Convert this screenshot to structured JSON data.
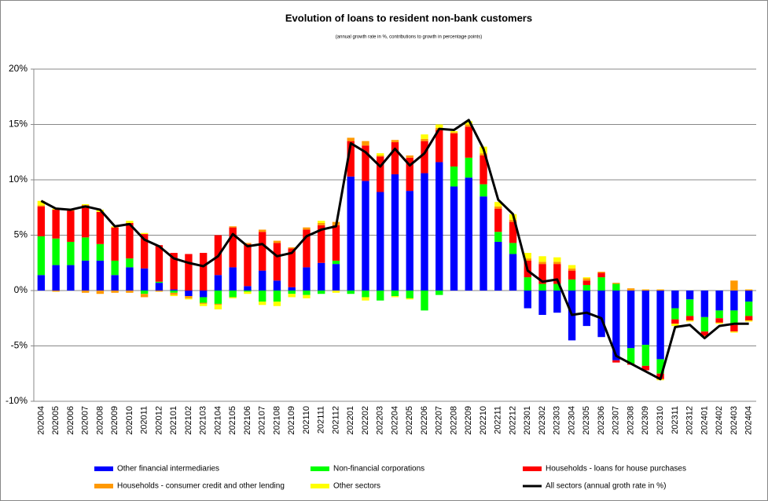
{
  "chart_data": {
    "type": "bar",
    "stacked": true,
    "title": "Evolution of loans to resident non-bank customers",
    "subtitle": "(annual growth rate in %, contributions to growth in percentage points)",
    "categories": [
      "202004",
      "202005",
      "202006",
      "202007",
      "202008",
      "202009",
      "202010",
      "202011",
      "202012",
      "202101",
      "202102",
      "202103",
      "202104",
      "202105",
      "202106",
      "202107",
      "202108",
      "202109",
      "202110",
      "202111",
      "202112",
      "202201",
      "202202",
      "202203",
      "202204",
      "202205",
      "202206",
      "202207",
      "202208",
      "202209",
      "202210",
      "202211",
      "202212",
      "202301",
      "202302",
      "202303",
      "202304",
      "202305",
      "202306",
      "202307",
      "202308",
      "202309",
      "202310",
      "202311",
      "202312",
      "202401",
      "202402",
      "202403",
      "202404"
    ],
    "ylim": [
      -10,
      20
    ],
    "yticks": [
      {
        "value": -10,
        "label": "-10%"
      },
      {
        "value": -5,
        "label": "-5%"
      },
      {
        "value": 0,
        "label": "0%"
      },
      {
        "value": 5,
        "label": "5%"
      },
      {
        "value": 10,
        "label": "10%"
      },
      {
        "value": 15,
        "label": "15%"
      },
      {
        "value": 20,
        "label": "20%"
      }
    ],
    "grid": true,
    "series": [
      {
        "name": "Other financial intermediaries",
        "type": "bar",
        "color": "#0000ff",
        "values": [
          1.4,
          2.3,
          2.3,
          2.7,
          2.7,
          1.4,
          2.1,
          2.0,
          0.7,
          0.1,
          -0.5,
          -0.6,
          1.4,
          2.1,
          0.4,
          1.8,
          0.9,
          0.3,
          2.1,
          2.5,
          2.4,
          10.3,
          9.9,
          8.9,
          10.5,
          9.0,
          10.6,
          11.6,
          9.4,
          10.2,
          8.5,
          4.4,
          3.3,
          -1.6,
          -2.2,
          -2.0,
          -4.5,
          -3.2,
          -4.2,
          -6.3,
          -5.2,
          -4.9,
          -6.2,
          -1.6,
          -0.8,
          -2.4,
          -1.8,
          -1.8,
          -1.0
        ]
      },
      {
        "name": "Non-financial corporations",
        "type": "bar",
        "color": "#00ff00",
        "values": [
          3.5,
          2.4,
          2.1,
          2.1,
          1.5,
          1.3,
          0.8,
          -0.3,
          0.1,
          -0.2,
          0,
          -0.5,
          -1.2,
          -0.6,
          -0.1,
          -1.0,
          -1.0,
          -0.3,
          -0.4,
          -0.3,
          0.3,
          -0.3,
          -0.6,
          -0.9,
          -0.5,
          -0.7,
          -1.8,
          -0.4,
          1.8,
          1.8,
          1.1,
          0.9,
          1.0,
          1.2,
          0.6,
          0.6,
          1.0,
          0.5,
          1.2,
          0.6,
          -1.4,
          -1.9,
          -1.3,
          -1.0,
          -1.5,
          -1.3,
          -0.7,
          -1.3,
          -1.3
        ]
      },
      {
        "name": "Households - loans for house purchases",
        "type": "bar",
        "color": "#ff0000",
        "values": [
          2.7,
          2.6,
          2.8,
          2.9,
          2.9,
          3.0,
          3.2,
          3.1,
          3.3,
          3.3,
          3.3,
          3.4,
          3.6,
          3.6,
          3.8,
          3.5,
          3.4,
          3.5,
          3.4,
          3.4,
          3.2,
          3.2,
          3.2,
          3.2,
          2.9,
          3.0,
          2.9,
          2.9,
          3.0,
          2.8,
          2.6,
          2.1,
          1.9,
          1.5,
          1.8,
          1.8,
          0.8,
          0.4,
          0.4,
          -0.2,
          -0.1,
          -0.4,
          -0.5,
          -0.4,
          -0.4,
          -0.4,
          -0.4,
          -0.6,
          -0.4
        ]
      },
      {
        "name": "Households - consumer credit and other lending",
        "type": "bar",
        "color": "#ff9900",
        "values": [
          0.1,
          -0.1,
          0.1,
          -0.2,
          -0.3,
          -0.2,
          -0.2,
          -0.3,
          -0.1,
          -0.2,
          -0.2,
          -0.1,
          -0.1,
          0.1,
          0.1,
          0.2,
          0.2,
          0.1,
          0.2,
          0.2,
          0.3,
          0.3,
          0.4,
          0.1,
          0.2,
          0.2,
          0.2,
          0.2,
          0.1,
          0.2,
          0.2,
          0.2,
          0.2,
          0.2,
          0.2,
          0.2,
          0.2,
          0.2,
          0.1,
          0.1,
          0.2,
          0.1,
          0.1,
          0,
          0,
          0,
          0,
          0.9,
          0.1
        ]
      },
      {
        "name": "Other sectors",
        "type": "bar",
        "color": "#ffff00",
        "values": [
          0.4,
          0.1,
          0.1,
          0.1,
          0.2,
          0.1,
          0.2,
          0.1,
          0,
          -0.1,
          -0.1,
          -0.2,
          -0.4,
          -0.1,
          -0.2,
          -0.3,
          -0.4,
          -0.3,
          -0.3,
          0.2,
          -0.2,
          0,
          -0.3,
          0.2,
          -0.1,
          -0.1,
          0.4,
          0.3,
          0.1,
          0.3,
          0.6,
          0.4,
          0.5,
          0.5,
          0.5,
          0.4,
          0.3,
          0.1,
          0,
          0,
          0,
          0,
          -0.1,
          -0.2,
          -0.1,
          -0.1,
          -0.1,
          -0.1,
          -0.1
        ]
      },
      {
        "name": "All sectors (annual groth rate in %)",
        "type": "line",
        "color": "#000000",
        "values": [
          8.1,
          7.4,
          7.3,
          7.6,
          7.3,
          5.8,
          6.0,
          4.6,
          4.0,
          2.9,
          2.5,
          2.2,
          3.1,
          5.1,
          4.0,
          4.2,
          3.1,
          3.4,
          4.9,
          5.5,
          5.8,
          13.3,
          12.5,
          11.2,
          12.8,
          11.3,
          12.4,
          14.6,
          14.5,
          15.4,
          12.8,
          8.2,
          6.9,
          1.8,
          0.8,
          1.0,
          -2.2,
          -2.0,
          -2.5,
          -5.9,
          -6.6,
          -7.3,
          -8.0,
          -3.3,
          -3.1,
          -4.3,
          -3.2,
          -3.0,
          -3.0
        ]
      }
    ]
  }
}
